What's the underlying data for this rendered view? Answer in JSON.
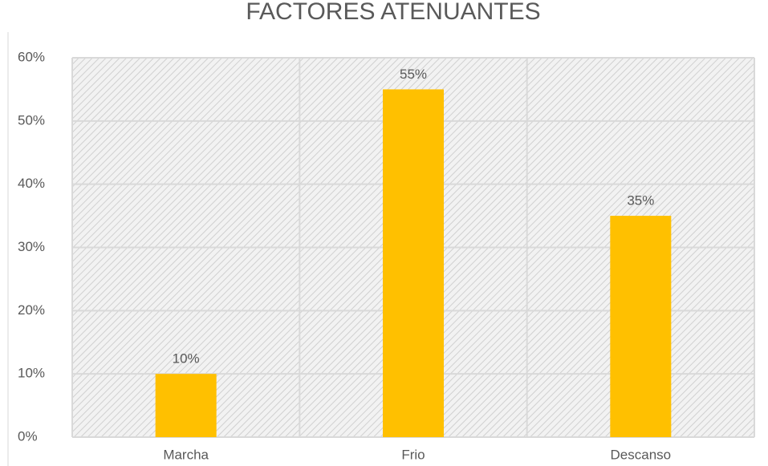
{
  "chart_data": {
    "type": "bar",
    "title": "FACTORES ATENUANTES",
    "categories": [
      "Marcha",
      "Frio",
      "Descanso"
    ],
    "values": [
      10,
      55,
      35
    ],
    "value_labels": [
      "10%",
      "55%",
      "35%"
    ],
    "color": "#ffc000",
    "ylim": [
      0,
      60
    ],
    "yticks": [
      {
        "value": 0,
        "label": "0%"
      },
      {
        "value": 10,
        "label": "10%"
      },
      {
        "value": 20,
        "label": "20%"
      },
      {
        "value": 30,
        "label": "30%"
      },
      {
        "value": 40,
        "label": "40%"
      },
      {
        "value": 50,
        "label": "50%"
      },
      {
        "value": 60,
        "label": "60%"
      }
    ],
    "grid": true
  }
}
